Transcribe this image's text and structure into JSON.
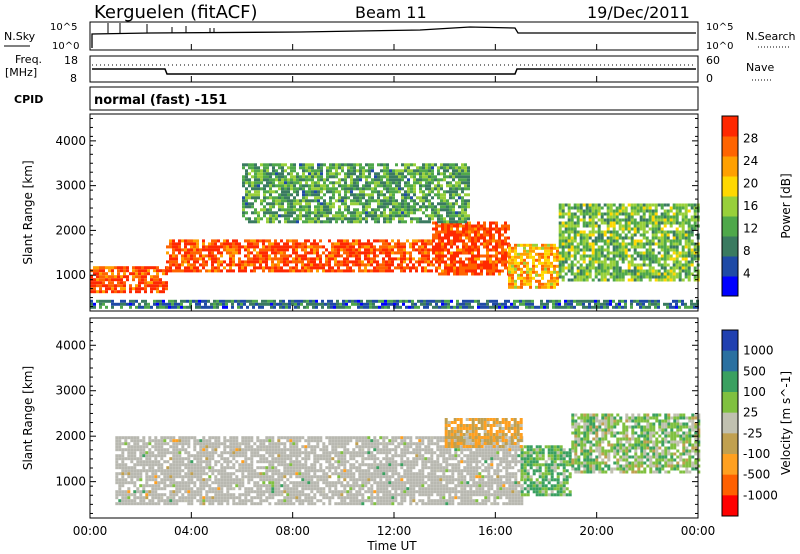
{
  "header": {
    "station": "Kerguelen (fitACF)",
    "beam": "Beam 11",
    "date": "19/Dec/2011"
  },
  "noise_panel": {
    "left_label": "N.Sky",
    "right_label": "N.Search",
    "ticks": [
      "10^5",
      "10^0"
    ]
  },
  "freq_panel": {
    "left_label_1": "Freq.",
    "left_label_2": "[MHz]",
    "left_ticks": [
      "18",
      "8"
    ],
    "right_label": "Nave",
    "right_ticks": [
      "60",
      "0"
    ]
  },
  "cpid": {
    "label": "CPID",
    "text": "normal (fast) -151"
  },
  "x_axis": {
    "label": "Time UT",
    "ticks": [
      "00:00",
      "04:00",
      "08:00",
      "12:00",
      "16:00",
      "20:00",
      "00:00"
    ]
  },
  "colors": {
    "power_scale": [
      "#0000ff",
      "#1f4aa6",
      "#3a7a60",
      "#4fa84a",
      "#98d03a",
      "#ffd800",
      "#ffa000",
      "#ff6400",
      "#ff2800"
    ],
    "velocity_scale": [
      "#2040b0",
      "#2a70a0",
      "#3aa060",
      "#80c040",
      "#c0c0b0",
      "#c0a050",
      "#ffa020",
      "#ff6000",
      "#ff0000"
    ],
    "ground_scatter": "#b8b8b0"
  },
  "chart_data": [
    {
      "type": "heatmap",
      "title": "",
      "xlabel": "Time UT",
      "ylabel": "Slant Range [km]",
      "xlim": [
        0,
        24
      ],
      "ylim": [
        200,
        4600
      ],
      "yticks": [
        1000,
        2000,
        3000,
        4000
      ],
      "colorbar": {
        "label": "Power [dB]",
        "ticks": [
          "4",
          "8",
          "12",
          "16",
          "20",
          "24",
          "28"
        ]
      },
      "scatter_bands": [
        {
          "t0": 0.0,
          "t1": 3.0,
          "r0": 650,
          "r1": 1200,
          "power": 26
        },
        {
          "t0": 3.0,
          "t1": 13.5,
          "r0": 1100,
          "r1": 1800,
          "power": 26
        },
        {
          "t0": 13.5,
          "t1": 16.5,
          "r0": 1000,
          "r1": 2200,
          "power": 27
        },
        {
          "t0": 16.5,
          "t1": 18.5,
          "r0": 700,
          "r1": 1700,
          "power": 20
        },
        {
          "t0": 18.5,
          "t1": 24.0,
          "r0": 900,
          "r1": 2600,
          "power": 12
        },
        {
          "t0": 0.0,
          "t1": 24.0,
          "r0": 250,
          "r1": 450,
          "power": 6
        },
        {
          "t0": 6.0,
          "t1": 15.0,
          "r0": 2200,
          "r1": 3500,
          "power": 10
        }
      ]
    },
    {
      "type": "heatmap",
      "title": "",
      "xlabel": "Time UT",
      "ylabel": "Slant Range [km]",
      "xlim": [
        0,
        24
      ],
      "ylim": [
        200,
        4600
      ],
      "yticks": [
        1000,
        2000,
        3000,
        4000
      ],
      "colorbar": {
        "label": "Velocity [m s^-1]",
        "ticks": [
          "1000",
          "500",
          "100",
          "25",
          "-25",
          "-100",
          "-500",
          "-1000"
        ]
      },
      "scatter_bands": [
        {
          "t0": 1.0,
          "t1": 17.0,
          "r0": 500,
          "r1": 2000,
          "velocity": 0,
          "ground_scatter": true
        },
        {
          "t0": 17.0,
          "t1": 19.0,
          "r0": 700,
          "r1": 1800,
          "velocity": 100
        },
        {
          "t0": 14.0,
          "t1": 17.0,
          "r0": 1800,
          "r1": 2400,
          "velocity": -100
        },
        {
          "t0": 19.0,
          "t1": 24.0,
          "r0": 1200,
          "r1": 2500,
          "velocity": 50
        }
      ]
    }
  ]
}
